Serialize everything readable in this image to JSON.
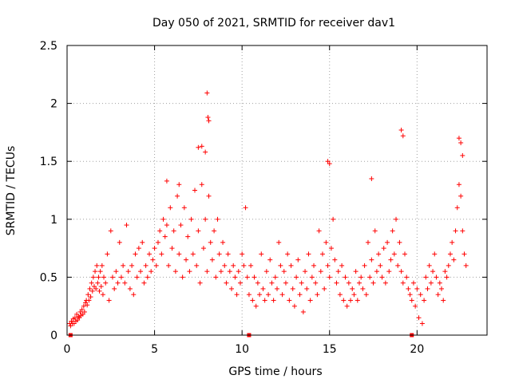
{
  "chart_data": {
    "type": "scatter",
    "title": "Day 050 of 2021, SRMTID for receiver dav1",
    "xlabel": "GPS time / hours",
    "ylabel": "SRMTID / TECUs",
    "xlim": [
      0,
      24
    ],
    "ylim": [
      0,
      2.5
    ],
    "x_ticks": [
      0,
      5,
      10,
      15,
      20
    ],
    "y_ticks": [
      0,
      0.5,
      1,
      1.5,
      2,
      2.5
    ],
    "x_tick_labels": [
      "0",
      "5",
      "10",
      "15",
      "20"
    ],
    "y_tick_labels": [
      "0",
      "0.5",
      "1",
      "1.5",
      "2",
      "2.5"
    ],
    "grid": true,
    "marker": "+",
    "series_color": "#ff0000",
    "marker_count_note": "approx",
    "series": [
      {
        "name": "SRMTID",
        "x": [
          0.15,
          0.2,
          0.25,
          0.3,
          0.35,
          0.4,
          0.45,
          0.5,
          0.55,
          0.6,
          0.65,
          0.7,
          0.75,
          0.8,
          0.85,
          0.9,
          0.95,
          1.0,
          1.05,
          1.1,
          1.15,
          1.2,
          1.25,
          1.3,
          1.35,
          1.4,
          1.45,
          1.5,
          1.55,
          1.6,
          1.65,
          1.7,
          1.75,
          1.8,
          1.85,
          1.9,
          1.95,
          2.0,
          2.05,
          2.1,
          2.2,
          2.3,
          2.4,
          2.5,
          2.6,
          2.7,
          2.8,
          2.9,
          3.0,
          3.1,
          3.2,
          3.3,
          3.4,
          3.5,
          3.6,
          3.7,
          3.8,
          3.9,
          4.0,
          4.1,
          4.2,
          4.3,
          4.4,
          4.5,
          4.6,
          4.7,
          4.8,
          4.9,
          5.0,
          5.1,
          5.2,
          5.3,
          5.4,
          5.5,
          5.6,
          5.7,
          5.8,
          5.9,
          6.0,
          6.1,
          6.2,
          6.3,
          6.4,
          6.5,
          6.6,
          6.7,
          6.8,
          6.9,
          7.0,
          7.1,
          7.2,
          7.3,
          7.4,
          7.5,
          7.6,
          7.7,
          7.8,
          7.9,
          8.0,
          8.1,
          8.2,
          8.3,
          8.4,
          8.5,
          8.6,
          8.7,
          8.8,
          8.9,
          9.0,
          9.1,
          9.2,
          9.3,
          9.4,
          9.5,
          9.6,
          9.7,
          9.8,
          9.9,
          10.0,
          10.1,
          10.2,
          10.3,
          10.4,
          10.5,
          10.6,
          10.7,
          10.8,
          10.9,
          11.0,
          11.1,
          11.2,
          11.3,
          11.4,
          11.5,
          11.6,
          11.7,
          11.8,
          11.9,
          12.0,
          12.1,
          12.2,
          12.3,
          12.4,
          12.5,
          12.6,
          12.7,
          12.8,
          12.9,
          13.0,
          13.1,
          13.2,
          13.3,
          13.4,
          13.5,
          13.6,
          13.7,
          13.8,
          13.9,
          14.0,
          14.1,
          14.2,
          14.3,
          14.4,
          14.5,
          14.6,
          14.7,
          14.8,
          14.9,
          15.0,
          15.1,
          15.2,
          15.3,
          15.4,
          15.5,
          15.6,
          15.7,
          15.8,
          15.9,
          16.0,
          16.1,
          16.2,
          16.3,
          16.4,
          16.5,
          16.6,
          16.7,
          16.8,
          16.9,
          17.0,
          17.1,
          17.2,
          17.3,
          17.4,
          17.5,
          17.6,
          17.7,
          17.8,
          17.9,
          18.0,
          18.1,
          18.2,
          18.3,
          18.4,
          18.5,
          18.6,
          18.7,
          18.8,
          18.9,
          19.0,
          19.1,
          19.2,
          19.3,
          19.4,
          19.5,
          19.6,
          19.7,
          19.8,
          19.9,
          20.0,
          20.1,
          20.2,
          20.3,
          20.4,
          20.5,
          20.6,
          20.7,
          20.8,
          20.9,
          21.0,
          21.1,
          21.2,
          21.3,
          21.4,
          21.5,
          21.6,
          21.7,
          21.8,
          21.9,
          22.0,
          22.1,
          22.2,
          22.3,
          22.4,
          22.5,
          22.6,
          22.7,
          22.8,
          8.0,
          8.05,
          8.1,
          7.5,
          7.7,
          19.1,
          19.2,
          22.4,
          22.5,
          22.6,
          5.7,
          6.4,
          7.9,
          14.9,
          15.0,
          17.4,
          0.2,
          10.4,
          19.7
        ],
        "y": [
          0.1,
          0.08,
          0.12,
          0.1,
          0.14,
          0.1,
          0.15,
          0.12,
          0.18,
          0.13,
          0.16,
          0.15,
          0.2,
          0.17,
          0.22,
          0.18,
          0.25,
          0.2,
          0.28,
          0.3,
          0.26,
          0.35,
          0.3,
          0.4,
          0.33,
          0.45,
          0.38,
          0.5,
          0.42,
          0.55,
          0.4,
          0.6,
          0.45,
          0.5,
          0.38,
          0.55,
          0.42,
          0.6,
          0.35,
          0.5,
          0.45,
          0.7,
          0.3,
          0.9,
          0.5,
          0.4,
          0.55,
          0.45,
          0.8,
          0.5,
          0.6,
          0.45,
          0.95,
          0.55,
          0.4,
          0.6,
          0.35,
          0.7,
          0.5,
          0.75,
          0.55,
          0.8,
          0.45,
          0.6,
          0.5,
          0.7,
          0.55,
          0.65,
          0.75,
          0.6,
          0.8,
          0.9,
          0.7,
          1.0,
          0.85,
          0.95,
          0.6,
          1.1,
          0.75,
          0.9,
          0.55,
          1.2,
          0.7,
          0.95,
          0.5,
          1.1,
          0.65,
          0.85,
          0.55,
          1.0,
          0.7,
          1.25,
          0.6,
          0.9,
          0.45,
          1.3,
          0.75,
          1.0,
          0.55,
          1.2,
          0.8,
          0.65,
          0.9,
          0.5,
          1.0,
          0.7,
          0.55,
          0.8,
          0.6,
          0.45,
          0.7,
          0.55,
          0.4,
          0.6,
          0.5,
          0.35,
          0.55,
          0.45,
          0.7,
          0.6,
          1.1,
          0.5,
          0.35,
          0.6,
          0.3,
          0.5,
          0.25,
          0.45,
          0.35,
          0.7,
          0.4,
          0.3,
          0.55,
          0.35,
          0.65,
          0.45,
          0.3,
          0.5,
          0.4,
          0.8,
          0.6,
          0.35,
          0.55,
          0.45,
          0.7,
          0.3,
          0.6,
          0.4,
          0.25,
          0.5,
          0.65,
          0.35,
          0.45,
          0.2,
          0.55,
          0.4,
          0.7,
          0.3,
          0.5,
          0.6,
          0.45,
          0.35,
          0.9,
          0.55,
          0.7,
          0.4,
          0.8,
          0.6,
          0.5,
          0.75,
          1.0,
          0.65,
          0.45,
          0.55,
          0.35,
          0.6,
          0.3,
          0.5,
          0.25,
          0.45,
          0.3,
          0.4,
          0.35,
          0.55,
          0.3,
          0.45,
          0.5,
          0.4,
          0.6,
          0.35,
          0.8,
          0.5,
          0.65,
          0.45,
          0.9,
          0.55,
          0.7,
          0.6,
          0.5,
          0.75,
          0.45,
          0.8,
          0.55,
          0.65,
          0.9,
          0.7,
          1.0,
          0.6,
          0.8,
          0.55,
          0.45,
          0.7,
          0.5,
          0.4,
          0.35,
          0.3,
          0.45,
          0.25,
          0.4,
          0.15,
          0.35,
          0.1,
          0.3,
          0.5,
          0.4,
          0.6,
          0.45,
          0.55,
          0.7,
          0.5,
          0.35,
          0.45,
          0.4,
          0.3,
          0.55,
          0.5,
          0.6,
          0.7,
          0.8,
          0.65,
          0.9,
          1.1,
          1.3,
          1.2,
          0.9,
          0.7,
          0.6,
          2.09,
          1.88,
          1.85,
          1.62,
          1.63,
          1.77,
          1.72,
          1.7,
          1.66,
          1.55,
          1.33,
          1.3,
          1.58,
          1.5,
          1.48,
          1.35,
          0.0,
          0.0,
          0.0
        ]
      }
    ]
  }
}
